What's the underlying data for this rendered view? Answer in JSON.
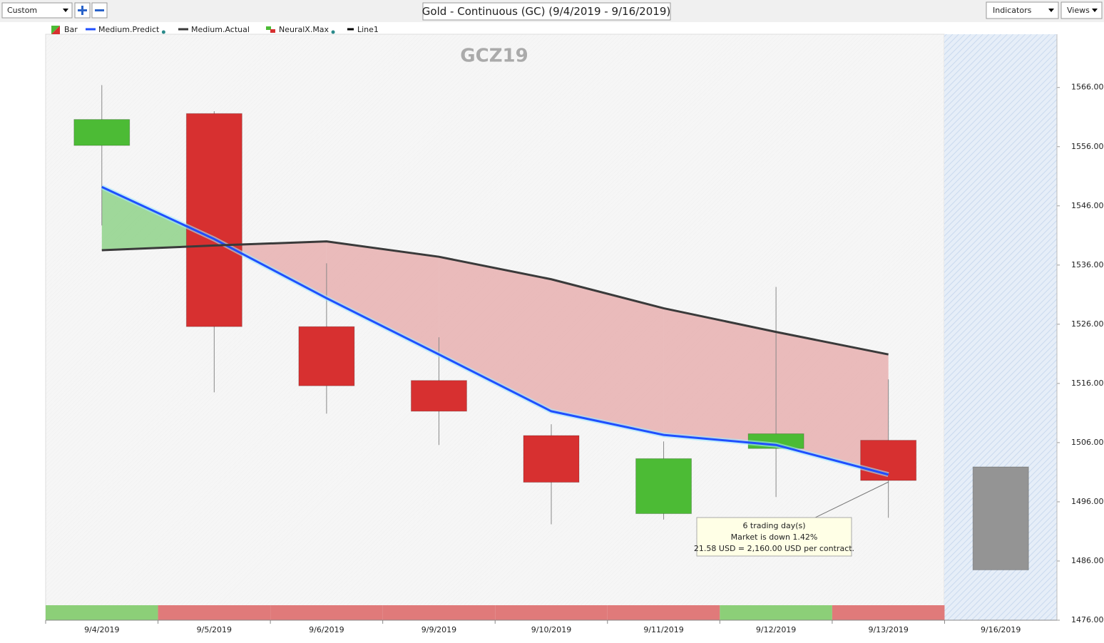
{
  "toolbar": {
    "preset": "Custom",
    "title": "Gold - Continuous (GC) (9/4/2019 - 9/16/2019)",
    "indicators": "Indicators",
    "views": "Views"
  },
  "chart_data": {
    "type": "candlestick",
    "title": "GCZ19",
    "categories": [
      "9/4/2019",
      "9/5/2019",
      "9/6/2019",
      "9/9/2019",
      "9/10/2019",
      "9/11/2019",
      "9/12/2019",
      "9/13/2019",
      "9/16/2019"
    ],
    "series": [
      {
        "name": "Bar",
        "up_color": "#4cbb35",
        "down_color": "#d73030",
        "projection_color": "#949494",
        "open": [
          1556.2,
          1561.6,
          1525.6,
          1516.5,
          1507.2,
          1494.0,
          1505.0,
          1506.4,
          1501.9
        ],
        "high": [
          1566.4,
          1562.0,
          1536.3,
          1523.8,
          1509.1,
          1506.2,
          1532.3,
          1516.7,
          null
        ],
        "low": [
          1542.7,
          1514.5,
          1510.9,
          1505.6,
          1492.2,
          1493.0,
          1496.8,
          1493.3,
          null
        ],
        "close": [
          1560.6,
          1525.6,
          1515.6,
          1511.3,
          1499.3,
          1503.3,
          1507.5,
          1499.6,
          1484.5
        ]
      },
      {
        "name": "Medium.Predict",
        "color": "#1f4fff",
        "values": [
          1549.2,
          1540.4,
          1530.4,
          1520.9,
          1511.3,
          1507.3,
          1505.6,
          1500.6,
          null
        ]
      },
      {
        "name": "Medium.Actual",
        "color": "#3a3a3a",
        "values": [
          1538.5,
          1539.3,
          1540.0,
          1537.4,
          1533.6,
          1528.7,
          1524.7,
          1520.9,
          null
        ]
      },
      {
        "name": "NeuralX.Max",
        "colors": [
          "#8ccf78",
          "#e07a7a",
          "#e07a7a",
          "#e07a7a",
          "#e07a7a",
          "#e07a7a",
          "#8ccf78",
          "#e07a7a",
          null
        ]
      },
      {
        "name": "Line1",
        "color": "#000000"
      }
    ],
    "fill_up_color": "#8fd28a",
    "fill_down_color": "#e8b0b0",
    "ylim": [
      1476,
      1575
    ],
    "yticks": [
      {
        "value": 1476,
        "label": "1476.00"
      },
      {
        "value": 1486,
        "label": "1486.00"
      },
      {
        "value": 1496,
        "label": "1496.00"
      },
      {
        "value": 1506,
        "label": "1506.00"
      },
      {
        "value": 1516,
        "label": "1516.00"
      },
      {
        "value": 1526,
        "label": "1526.00"
      },
      {
        "value": 1536,
        "label": "1536.00"
      },
      {
        "value": 1546,
        "label": "1546.00"
      },
      {
        "value": 1556,
        "label": "1556.00"
      },
      {
        "value": 1566,
        "label": "1566.00"
      }
    ],
    "annotation": [
      "6 trading day(s)",
      "Market is down 1.42%",
      "21.58 USD = 2,160.00 USD per contract."
    ]
  }
}
